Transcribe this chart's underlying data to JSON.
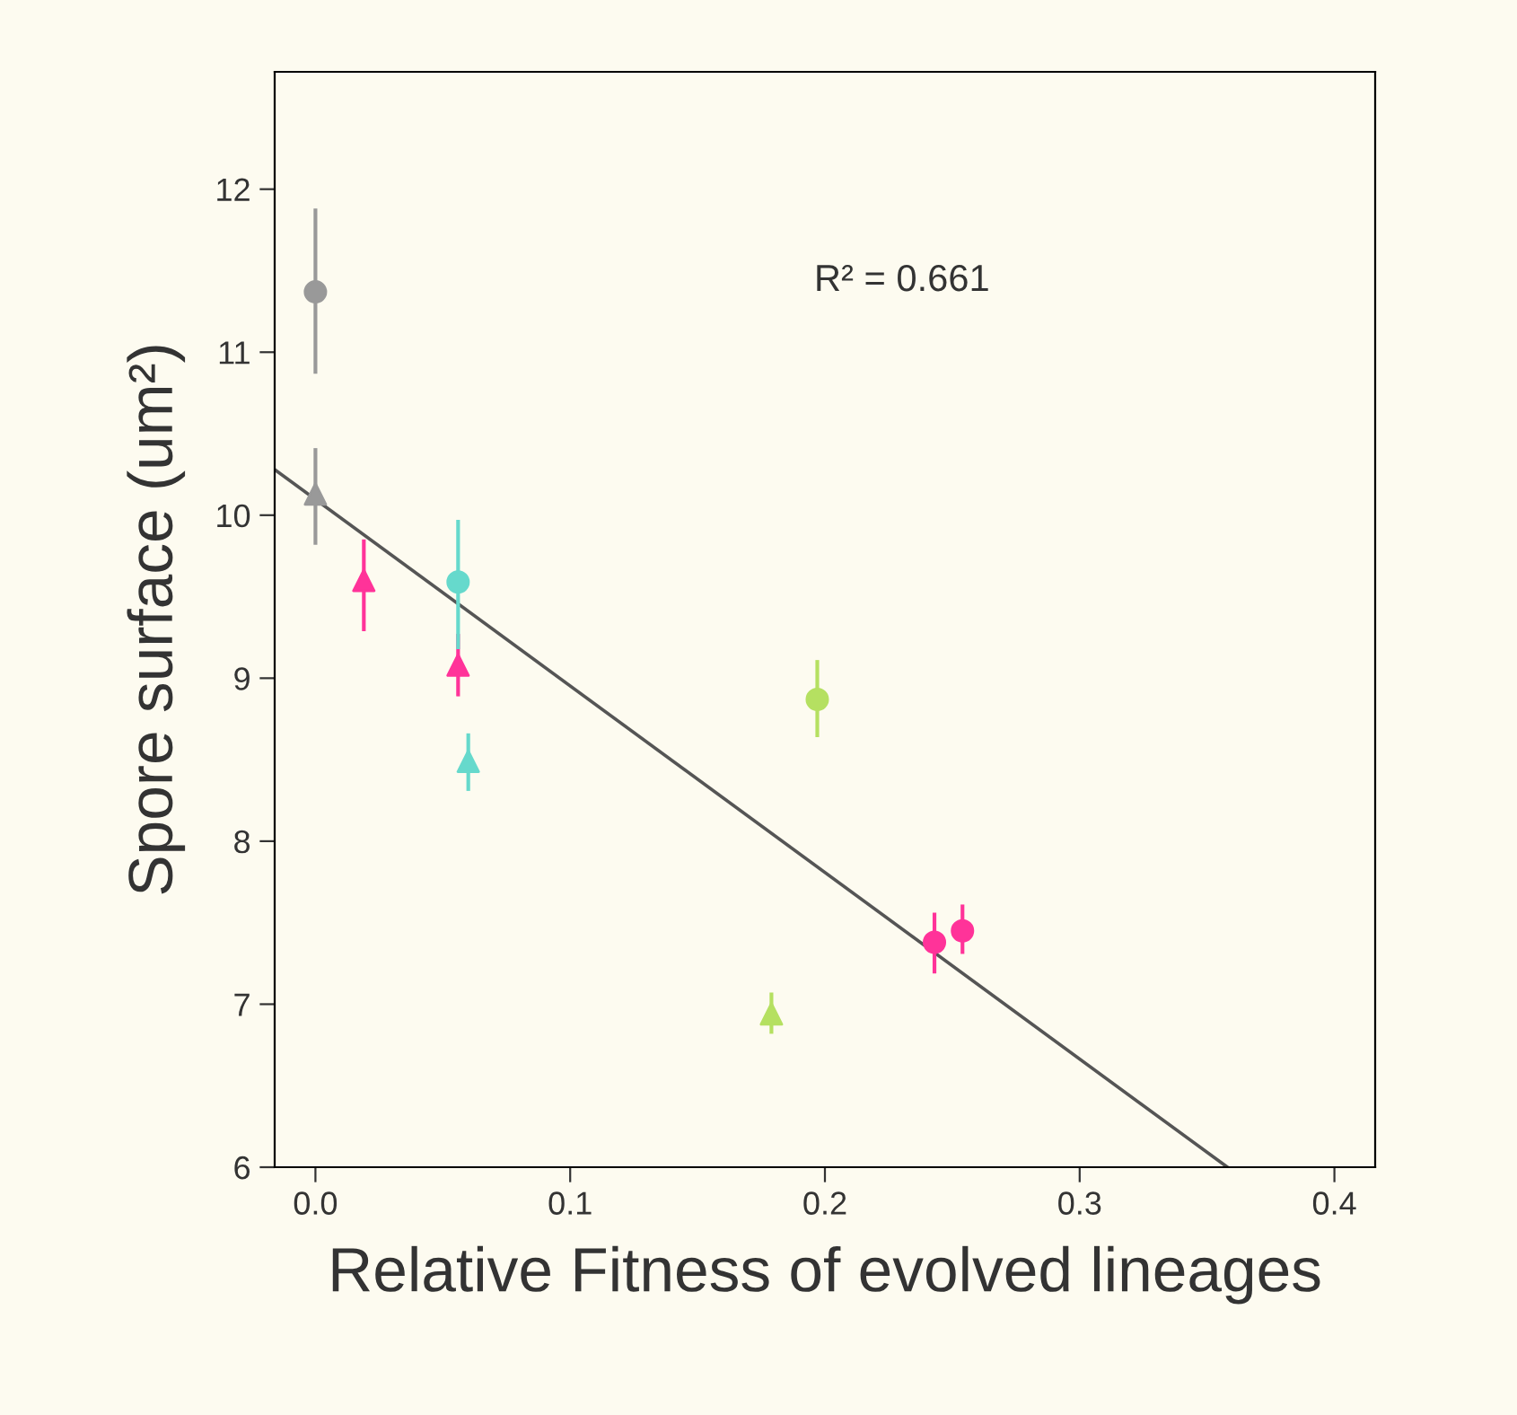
{
  "chart_data": {
    "type": "scatter",
    "xlabel": "Relative Fitness of evolved lineages",
    "ylabel": "Spore surface (um²)",
    "xlim": [
      -0.016,
      0.416
    ],
    "ylim": [
      6,
      12.72
    ],
    "xticks": [
      {
        "value": 0,
        "label": "0.0"
      },
      0.1,
      0.2,
      0.3,
      0.4
    ],
    "yticks": [
      6,
      7,
      8,
      9,
      10,
      11,
      12
    ],
    "grid": false,
    "legend": false,
    "annotations": [
      "R² = 0.661"
    ],
    "series": [
      {
        "type": "line",
        "color": "#555555",
        "marker": "none",
        "line_style": "solid",
        "x": [
          -0.016,
          0.358
        ],
        "values": [
          10.28,
          6.0
        ]
      },
      {
        "color": "#999999",
        "marker": "circle",
        "x": [
          0.0
        ],
        "values": [
          11.37
        ],
        "errors": [
          [
            10.88,
            11.87
          ]
        ]
      },
      {
        "color": "#999999",
        "marker": "triangle",
        "x": [
          0.0
        ],
        "values": [
          10.13
        ],
        "errors": [
          [
            9.83,
            10.4
          ]
        ]
      },
      {
        "color": "#ff3399",
        "marker": "triangle",
        "x": [
          0.019,
          0.056
        ],
        "values": [
          9.6,
          9.08
        ],
        "errors": [
          [
            9.3,
            9.84
          ],
          [
            8.9,
            9.26
          ]
        ]
      },
      {
        "color": "#ff3399",
        "marker": "circle",
        "x": [
          0.243,
          0.254
        ],
        "values": [
          7.38,
          7.45
        ],
        "errors": [
          [
            7.2,
            7.55
          ],
          [
            7.32,
            7.6
          ]
        ]
      },
      {
        "color": "#66d9cc",
        "marker": "circle",
        "x": [
          0.056
        ],
        "values": [
          9.59
        ],
        "errors": [
          [
            9.19,
            9.96
          ]
        ]
      },
      {
        "color": "#66d9cc",
        "marker": "triangle",
        "x": [
          0.06
        ],
        "values": [
          8.49
        ],
        "errors": [
          [
            8.32,
            8.65
          ]
        ]
      },
      {
        "color": "#b5e061",
        "marker": "circle",
        "x": [
          0.197
        ],
        "values": [
          8.87
        ],
        "errors": [
          [
            8.65,
            9.1
          ]
        ]
      },
      {
        "color": "#b5e061",
        "marker": "triangle",
        "x": [
          0.179
        ],
        "values": [
          6.94
        ],
        "errors": [
          [
            6.83,
            7.06
          ]
        ]
      }
    ]
  }
}
